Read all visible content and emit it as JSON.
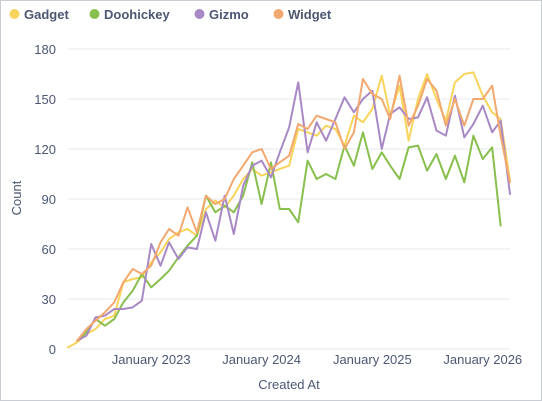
{
  "colors": {
    "Gadget": "#f9d45c",
    "Doohickey": "#88bf4d",
    "Gizmo": "#a989c5",
    "Widget": "#f2a86f",
    "grid": "#e6e8ec",
    "text": "#4c5773"
  },
  "chart_data": {
    "type": "line",
    "xlabel": "Created At",
    "ylabel": "Count",
    "ylim": [
      0,
      180
    ],
    "yticks": [
      0,
      30,
      60,
      90,
      120,
      150,
      180
    ],
    "xlim": [
      "2022-04-01",
      "2026-04-01"
    ],
    "xticks": [
      {
        "date": "2023-01-01",
        "label": "January 2023"
      },
      {
        "date": "2024-01-01",
        "label": "January 2024"
      },
      {
        "date": "2025-01-01",
        "label": "January 2025"
      },
      {
        "date": "2026-01-01",
        "label": "January 2026"
      }
    ],
    "grid": "horizontal",
    "legend_position": "top-left",
    "x": [
      "2022-04-01",
      "2022-05-01",
      "2022-06-01",
      "2022-07-01",
      "2022-08-01",
      "2022-09-01",
      "2022-10-01",
      "2022-11-01",
      "2022-12-01",
      "2023-01-01",
      "2023-02-01",
      "2023-03-01",
      "2023-04-01",
      "2023-05-01",
      "2023-06-01",
      "2023-07-01",
      "2023-08-01",
      "2023-09-01",
      "2023-10-01",
      "2023-11-01",
      "2023-12-01",
      "2024-01-01",
      "2024-02-01",
      "2024-03-01",
      "2024-04-01",
      "2024-05-01",
      "2024-06-01",
      "2024-07-01",
      "2024-08-01",
      "2024-09-01",
      "2024-10-01",
      "2024-11-01",
      "2024-12-01",
      "2025-01-01",
      "2025-02-01",
      "2025-03-01",
      "2025-04-01",
      "2025-05-01",
      "2025-06-01",
      "2025-07-01",
      "2025-08-01",
      "2025-09-01",
      "2025-10-01",
      "2025-11-01",
      "2025-12-01",
      "2026-01-01",
      "2026-02-01",
      "2026-03-01",
      "2026-04-01"
    ],
    "series": [
      {
        "name": "Gadget",
        "values": [
          1,
          4,
          9,
          12,
          18,
          20,
          40,
          42,
          43,
          52,
          58,
          66,
          70,
          72,
          68,
          84,
          89,
          85,
          92,
          102,
          108,
          104,
          106,
          108,
          110,
          132,
          130,
          128,
          134,
          132,
          122,
          140,
          136,
          144,
          164,
          140,
          158,
          125,
          150,
          165,
          150,
          137,
          160,
          165,
          166,
          152,
          142,
          138,
          101
        ]
      },
      {
        "name": "Doohickey",
        "values": [
          null,
          5,
          10,
          18,
          14,
          18,
          28,
          35,
          45,
          37,
          42,
          47,
          55,
          62,
          68,
          92,
          82,
          86,
          82,
          92,
          112,
          87,
          112,
          84,
          84,
          76,
          113,
          102,
          105,
          102,
          122,
          110,
          130,
          108,
          118,
          110,
          102,
          121,
          122,
          107,
          117,
          102,
          116,
          100,
          128,
          114,
          121,
          74,
          null
        ]
      },
      {
        "name": "Gizmo",
        "values": [
          null,
          5,
          8,
          19,
          20,
          24,
          24,
          25,
          29,
          63,
          50,
          64,
          54,
          61,
          60,
          82,
          65,
          92,
          69,
          98,
          110,
          113,
          103,
          118,
          133,
          160,
          118,
          136,
          125,
          138,
          151,
          142,
          150,
          155,
          120,
          141,
          145,
          138,
          139,
          151,
          131,
          128,
          152,
          127,
          135,
          146,
          130,
          137,
          93
        ]
      },
      {
        "name": "Widget",
        "values": [
          null,
          5,
          12,
          17,
          22,
          28,
          40,
          48,
          45,
          50,
          64,
          72,
          68,
          85,
          70,
          92,
          87,
          90,
          102,
          110,
          118,
          120,
          108,
          112,
          116,
          135,
          132,
          140,
          138,
          136,
          120,
          130,
          162,
          153,
          150,
          138,
          164,
          134,
          146,
          162,
          155,
          134,
          150,
          134,
          150,
          150,
          158,
          128,
          100
        ]
      }
    ]
  }
}
